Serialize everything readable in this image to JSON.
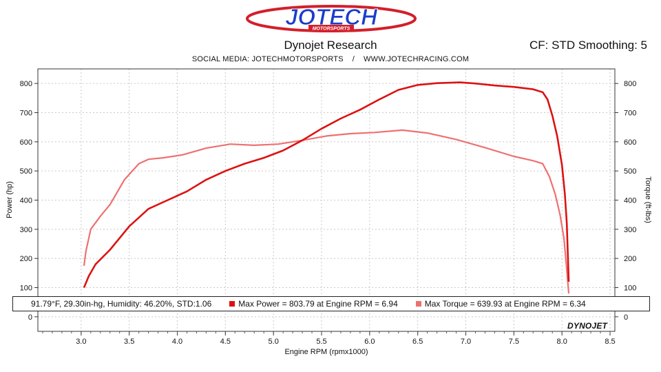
{
  "header": {
    "logo_text": "JOTECH",
    "logo_subtext": "MOTORSPORTS",
    "title": "Dynojet Research",
    "cf": "CF: STD Smoothing: 5",
    "social": "SOCIAL MEDIA: JOTECHMOTORSPORTS    /    WWW.JOTECHRACING.COM"
  },
  "info_bar": {
    "conditions": "91.79°F, 29.30in-hg, Humidity: 46.20%, STD:1.06",
    "max_power": "Max Power = 803.79 at Engine RPM = 6.94",
    "max_torque": "Max Torque = 639.93 at Engine RPM = 6.34"
  },
  "footer_brand": "DYNOJET",
  "colors": {
    "power": "#dd1111",
    "torque": "#ee7070",
    "grid": "#c8c8c8",
    "logo_blue": "#1a3ccc",
    "logo_red": "#d31f2a"
  },
  "chart_data": {
    "type": "line",
    "xlabel": "Engine RPM (rpmx1000)",
    "ylabel_left": "Power (hp)",
    "ylabel_right": "Torque (ft-lbs)",
    "xlim": [
      2.55,
      8.55
    ],
    "ylim": [
      -50,
      850
    ],
    "x_ticks": [
      3.0,
      3.5,
      4.0,
      4.5,
      5.0,
      5.5,
      6.0,
      6.5,
      7.0,
      7.5,
      8.0,
      8.5
    ],
    "y_ticks": [
      0,
      100,
      200,
      300,
      400,
      500,
      600,
      700,
      800
    ],
    "grid": true,
    "series": [
      {
        "name": "Power",
        "x": [
          3.03,
          3.08,
          3.15,
          3.3,
          3.5,
          3.7,
          3.9,
          4.1,
          4.3,
          4.5,
          4.7,
          4.9,
          5.1,
          5.3,
          5.5,
          5.7,
          5.9,
          6.1,
          6.3,
          6.5,
          6.7,
          6.94,
          7.1,
          7.3,
          7.5,
          7.7,
          7.8,
          7.85,
          7.9,
          7.95,
          8.0,
          8.03,
          8.05,
          8.07
        ],
        "y": [
          100,
          140,
          180,
          230,
          310,
          370,
          400,
          430,
          470,
          500,
          525,
          545,
          570,
          605,
          645,
          680,
          710,
          745,
          778,
          795,
          801,
          803.79,
          800,
          793,
          788,
          780,
          770,
          745,
          690,
          620,
          520,
          420,
          320,
          120
        ]
      },
      {
        "name": "Torque",
        "x": [
          3.03,
          3.05,
          3.1,
          3.2,
          3.3,
          3.45,
          3.6,
          3.7,
          3.85,
          4.05,
          4.3,
          4.55,
          4.8,
          5.05,
          5.3,
          5.55,
          5.8,
          6.05,
          6.34,
          6.6,
          6.9,
          7.2,
          7.5,
          7.7,
          7.8,
          7.87,
          7.93,
          7.98,
          8.02,
          8.05,
          8.07
        ],
        "y": [
          175,
          225,
          300,
          345,
          385,
          470,
          525,
          540,
          545,
          555,
          578,
          592,
          588,
          592,
          605,
          620,
          628,
          632,
          639.93,
          630,
          608,
          580,
          550,
          535,
          525,
          480,
          420,
          350,
          270,
          160,
          80
        ]
      }
    ]
  }
}
